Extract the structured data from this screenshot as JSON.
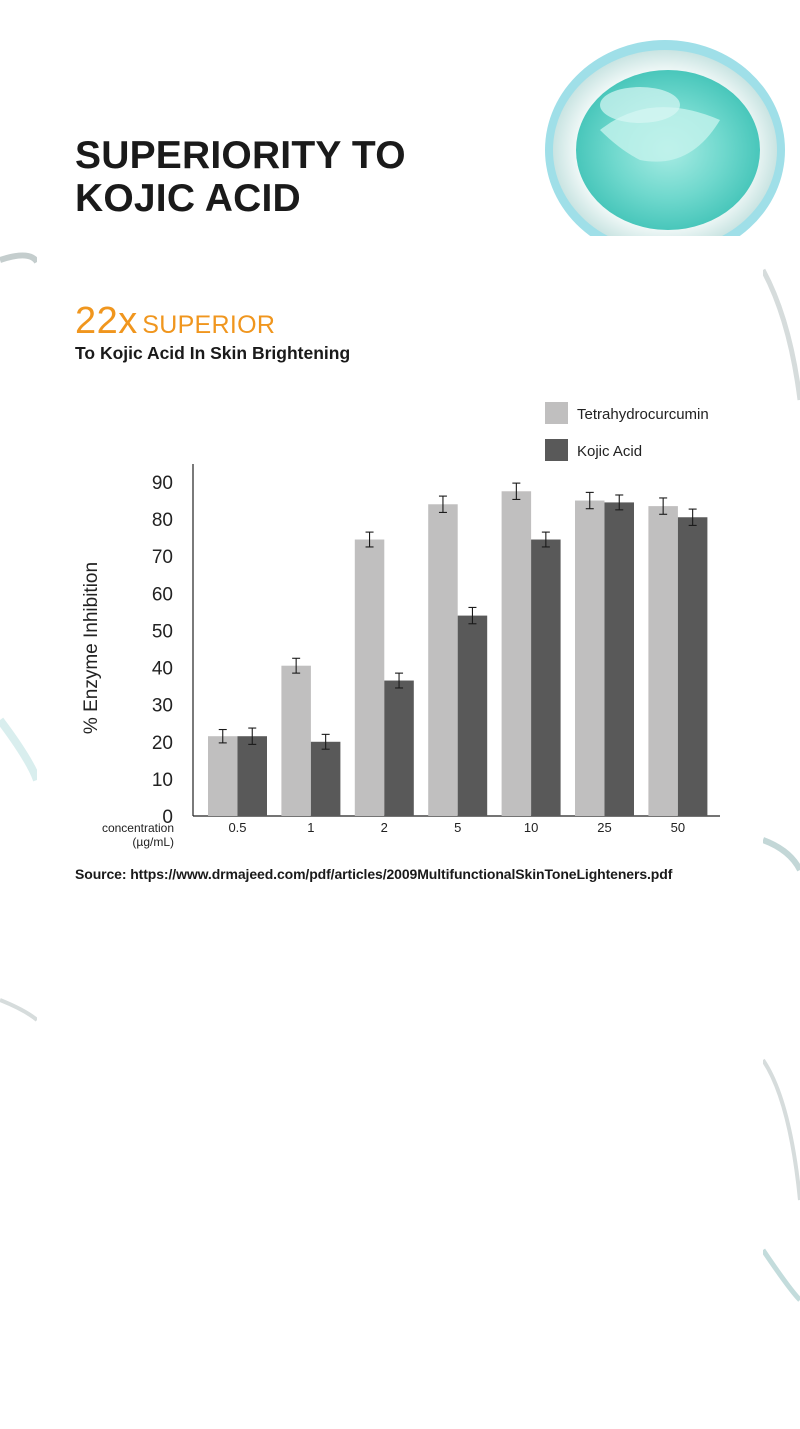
{
  "heading": {
    "title": "SUPERIORITY TO KOJIC ACID",
    "multiplier": "22x",
    "superior": "SUPERIOR",
    "subtitle": "To Kojic Acid In Skin Brightening"
  },
  "source_text": "Source: https://www.drmajeed.com/pdf/articles/2009MultifunctionalSkinToneLighteners.pdf",
  "colors": {
    "accent": "#f0961e",
    "tetrahydrocurcumin": "#c0bfbf",
    "kojic_acid": "#595959",
    "jar_teal": "#5fd3c8"
  },
  "chart_data": {
    "type": "bar",
    "categories": [
      "0.5",
      "1",
      "2",
      "5",
      "10",
      "25",
      "50"
    ],
    "series": [
      {
        "name": "Tetrahydrocurcumin",
        "values": [
          21.5,
          40.5,
          74.5,
          84,
          87.5,
          85,
          83.5
        ],
        "errors": [
          1.8,
          2,
          2,
          2.2,
          2.2,
          2.2,
          2.2
        ]
      },
      {
        "name": "Kojic Acid",
        "values": [
          21.5,
          20,
          36.5,
          54,
          74.5,
          84.5,
          80.5
        ],
        "errors": [
          2.2,
          2,
          2,
          2.2,
          2,
          2,
          2.2
        ]
      }
    ],
    "xlabel_line1": "concentration",
    "xlabel_line2": "(µg/mL)",
    "ylabel": "% Enzyme Inhibition",
    "yticks": [
      "0",
      "10",
      "20",
      "30",
      "40",
      "50",
      "60",
      "70",
      "80",
      "90"
    ],
    "ylim": [
      0,
      92
    ],
    "legend_position": "top-right",
    "grid": false
  }
}
